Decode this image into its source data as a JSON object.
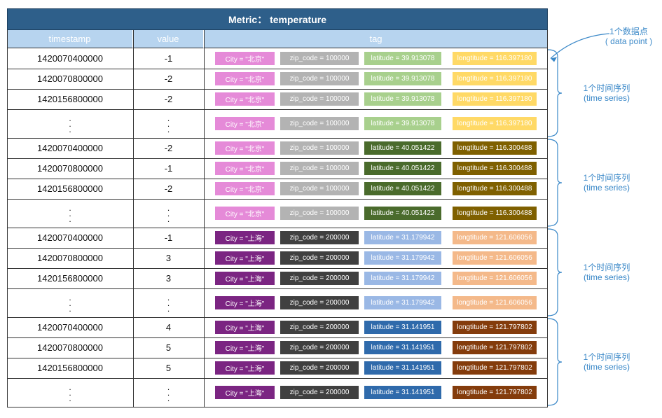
{
  "title": "Metric： temperature",
  "headers": {
    "timestamp": "timestamp",
    "value": "value",
    "tag": "tag"
  },
  "tag_labels": {
    "city_bj": "City = \"北京\"",
    "city_sh": "City = \"上海\"",
    "zip_bj": "zip_code = 100000",
    "zip_sh": "zip_code = 200000",
    "lat_1": "latitude = 39.913078",
    "lat_2": "latitude = 40.051422",
    "lat_3": "latitude = 31.179942",
    "lat_4": "latitude = 31.141951",
    "lon_1": "longtitude =  116.397180",
    "lon_2": "longtitude =  116.300488",
    "lon_3": "longtitude =  121.606056",
    "lon_4": "longtitude =  121.797802"
  },
  "colors": {
    "title_bg": "#2e5f8a",
    "header_bg": "#b7d4ef",
    "annotation": "#3a88c8",
    "groups": [
      {
        "city": "#e58ad8",
        "zip": "#b3b3b3",
        "lat": "#a8d08d",
        "lon": "#ffd966",
        "text": "#ffffff"
      },
      {
        "city": "#e58ad8",
        "zip": "#b3b3b3",
        "lat": "#4a6b2c",
        "lon": "#7f6000",
        "text": "#ffffff"
      },
      {
        "city": "#7b2582",
        "zip": "#404040",
        "lat": "#9ab8e5",
        "lon": "#f4b98a",
        "text": "#ffffff"
      },
      {
        "city": "#7b2582",
        "zip": "#404040",
        "lat": "#2f6aab",
        "lon": "#843c0c",
        "text": "#ffffff"
      }
    ]
  },
  "groups": [
    {
      "city": "city_bj",
      "zip": "zip_bj",
      "lat": "lat_1",
      "lon": "lon_1",
      "rows": [
        {
          "timestamp": "1420070400000",
          "value": "-1"
        },
        {
          "timestamp": "1420070800000",
          "value": "-2"
        },
        {
          "timestamp": "1420156800000",
          "value": "-2"
        },
        {
          "timestamp": "...",
          "value": "..."
        }
      ]
    },
    {
      "city": "city_bj",
      "zip": "zip_bj",
      "lat": "lat_2",
      "lon": "lon_2",
      "rows": [
        {
          "timestamp": "1420070400000",
          "value": "-2"
        },
        {
          "timestamp": "1420070800000",
          "value": "-1"
        },
        {
          "timestamp": "1420156800000",
          "value": "-2"
        },
        {
          "timestamp": "...",
          "value": "..."
        }
      ]
    },
    {
      "city": "city_sh",
      "zip": "zip_sh",
      "lat": "lat_3",
      "lon": "lon_3",
      "rows": [
        {
          "timestamp": "1420070400000",
          "value": "-1"
        },
        {
          "timestamp": "1420070800000",
          "value": "3"
        },
        {
          "timestamp": "1420156800000",
          "value": "3"
        },
        {
          "timestamp": "...",
          "value": "..."
        }
      ]
    },
    {
      "city": "city_sh",
      "zip": "zip_sh",
      "lat": "lat_4",
      "lon": "lon_4",
      "rows": [
        {
          "timestamp": "1420070400000",
          "value": "4"
        },
        {
          "timestamp": "1420070800000",
          "value": "5"
        },
        {
          "timestamp": "1420156800000",
          "value": "5"
        },
        {
          "timestamp": "...",
          "value": "..."
        }
      ]
    }
  ],
  "annotations": {
    "data_point": [
      "1个数据点",
      "( data point )"
    ],
    "time_series": [
      "1个时间序列",
      "(time series)"
    ]
  }
}
